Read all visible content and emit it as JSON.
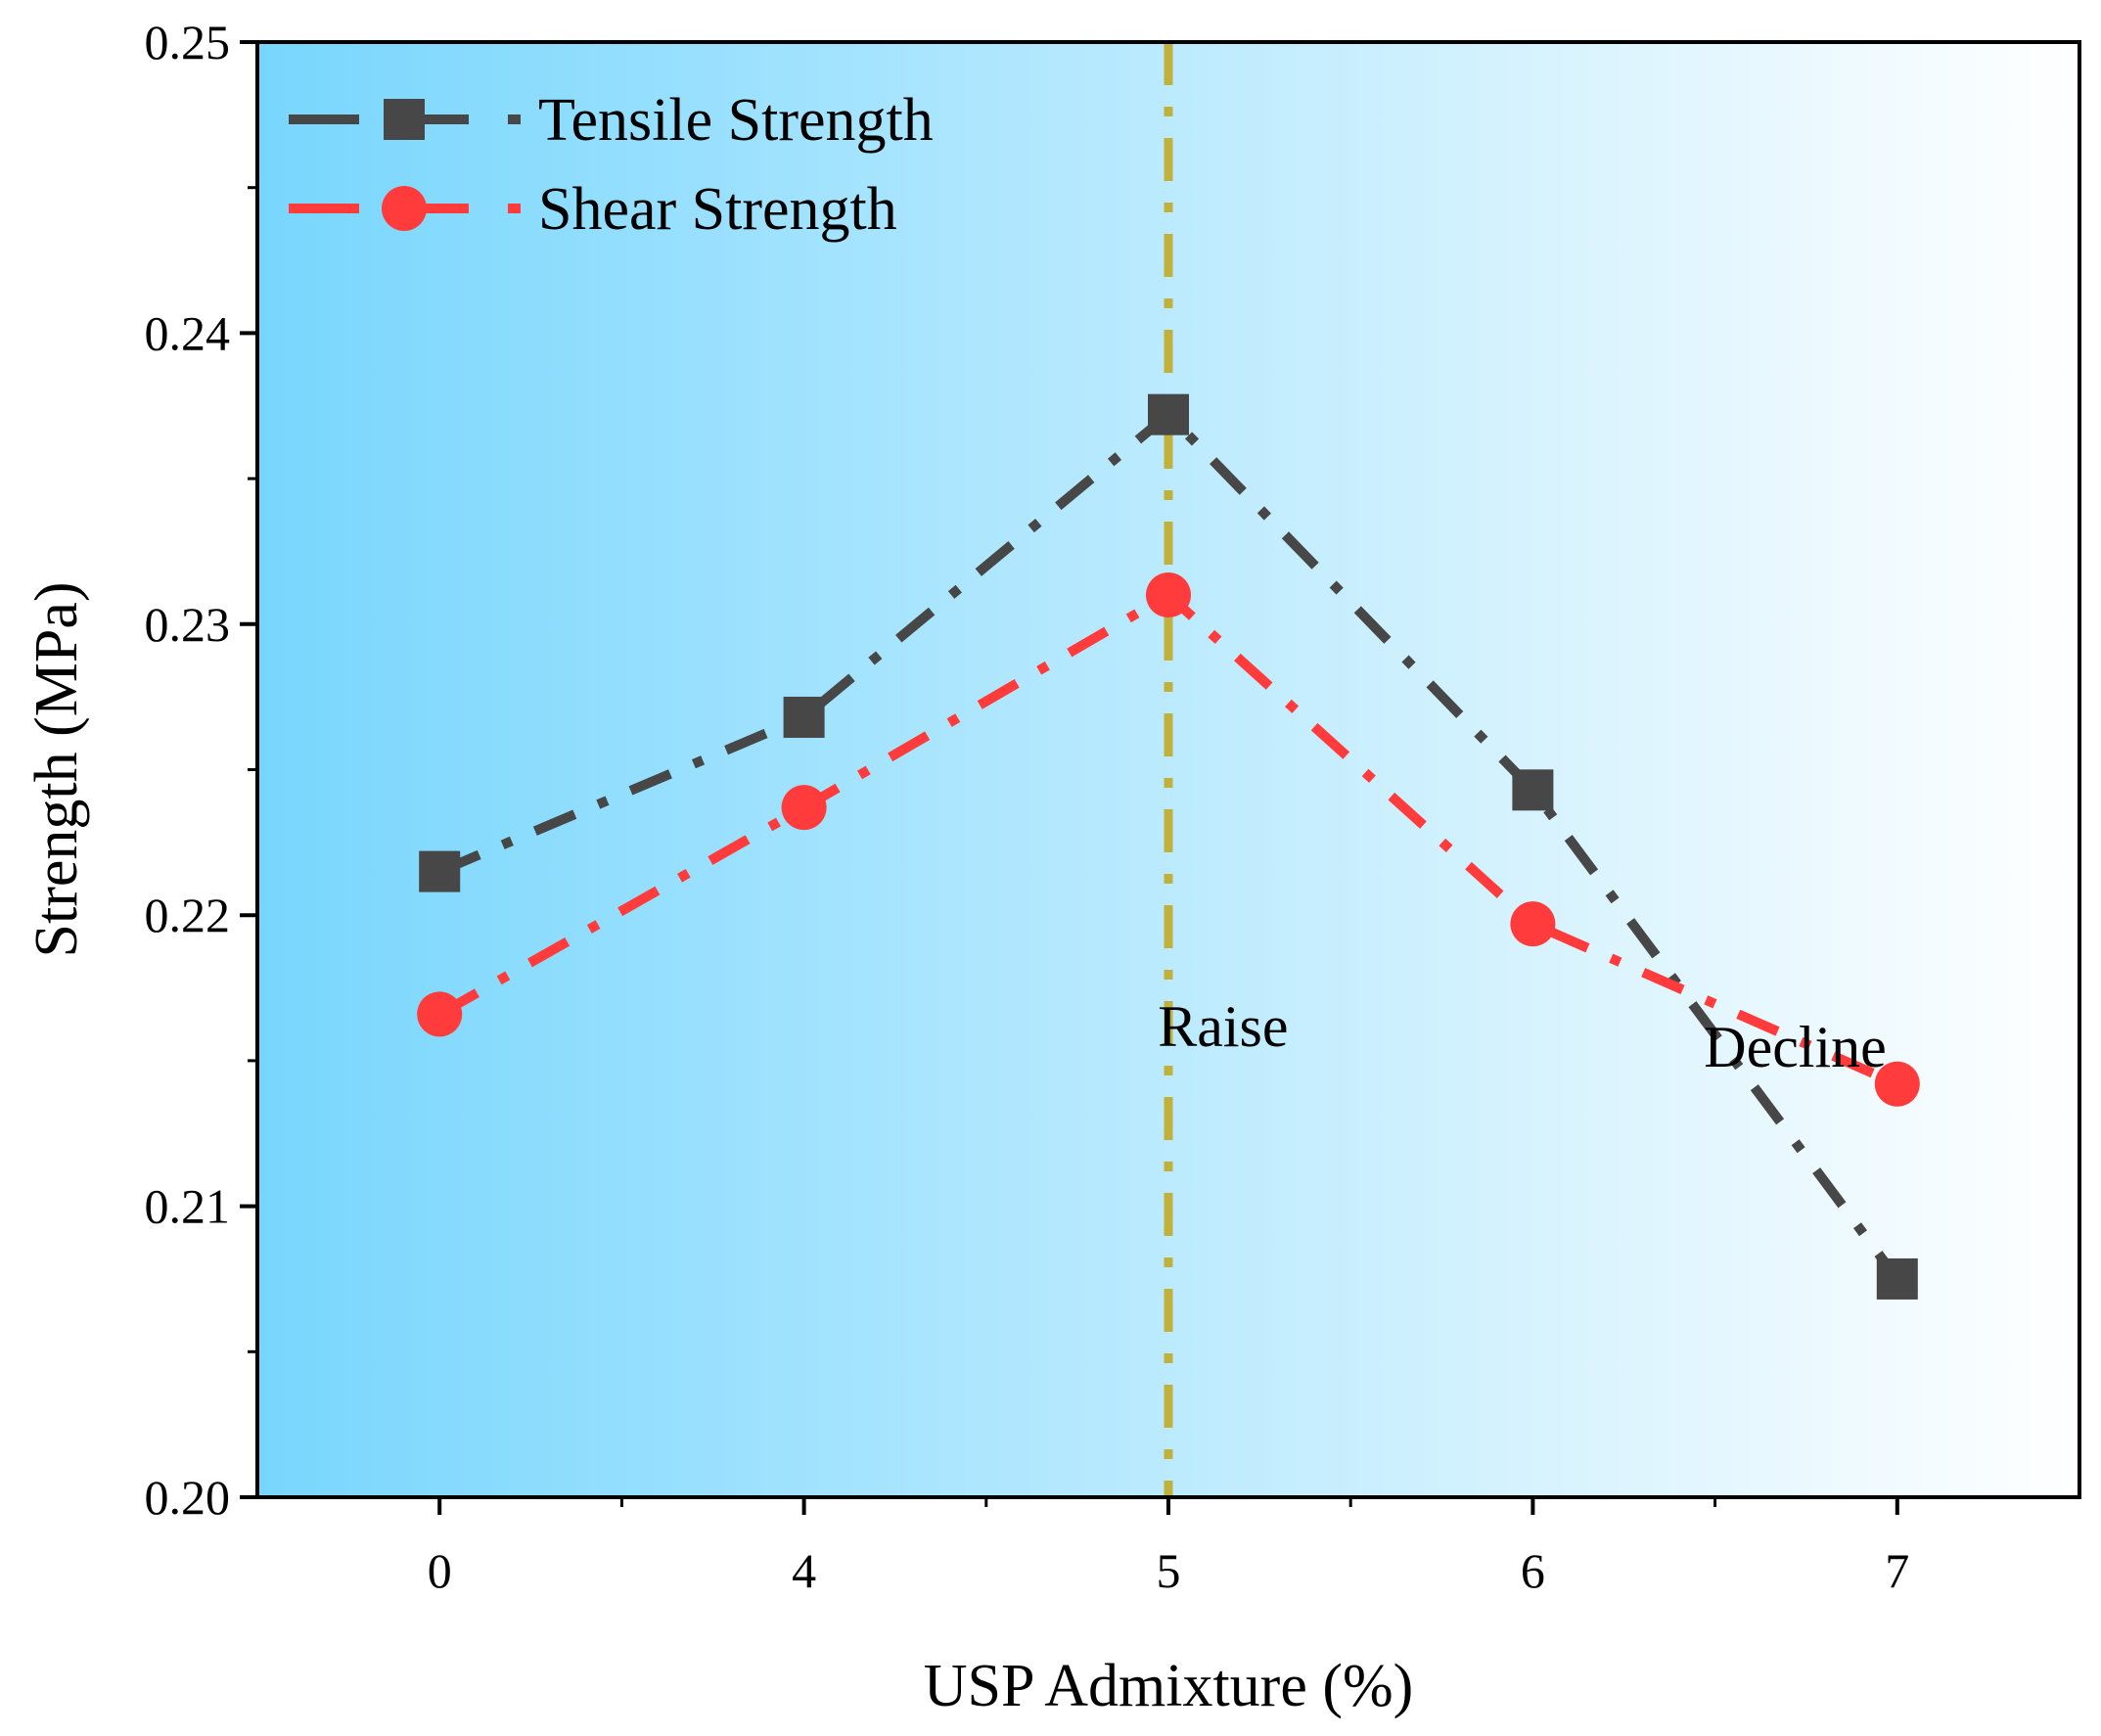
{
  "chart_data": {
    "type": "line",
    "title": "",
    "xlabel": "USP Admixture (%)",
    "ylabel": "Strength (MPa)",
    "categories": [
      "0",
      "4",
      "5",
      "6",
      "7"
    ],
    "ylim": [
      0.2,
      0.25
    ],
    "yticks": [
      "0.20",
      "0.21",
      "0.22",
      "0.23",
      "0.24",
      "0.25"
    ],
    "series": [
      {
        "name": "Tensile Strength",
        "color": "#474747",
        "marker": "square",
        "line_style": "dash-dot",
        "values": [
          0.2215,
          0.2268,
          0.2372,
          0.2243,
          0.2075
        ]
      },
      {
        "name": "Shear Strength",
        "color": "#ff3b3b",
        "marker": "circle",
        "line_style": "dash-dot",
        "values": [
          0.2166,
          0.2237,
          0.231,
          0.2197,
          0.2142
        ]
      }
    ],
    "reference_line": {
      "x_category": "5",
      "color": "#bfb13a",
      "line_style": "dash-dot"
    },
    "annotations": [
      {
        "text": "Raise",
        "x": 2.15,
        "y": 0.2155
      },
      {
        "text": "Decline",
        "x": 3.72,
        "y": 0.2148
      }
    ],
    "background_gradient": {
      "from": "#78d6fd",
      "to": "#ffffff"
    },
    "legend_position": "top-left",
    "grid": false
  }
}
